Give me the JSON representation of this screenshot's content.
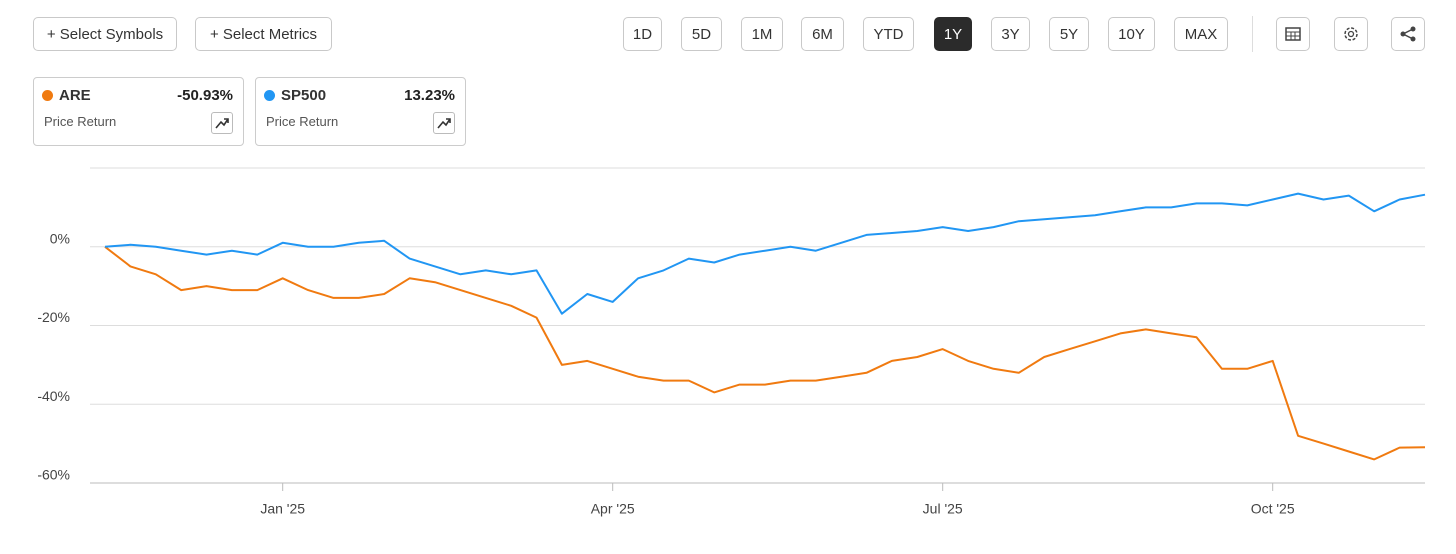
{
  "toolbar": {
    "left_buttons": [
      "+ Select Symbols",
      "+ Select Metrics"
    ],
    "ranges": [
      {
        "label": "1D",
        "selected": false
      },
      {
        "label": "5D",
        "selected": false
      },
      {
        "label": "1M",
        "selected": false
      },
      {
        "label": "6M",
        "selected": false
      },
      {
        "label": "YTD",
        "selected": false
      },
      {
        "label": "1Y",
        "selected": true
      },
      {
        "label": "3Y",
        "selected": false
      },
      {
        "label": "5Y",
        "selected": false
      },
      {
        "label": "10Y",
        "selected": false
      },
      {
        "label": "MAX",
        "selected": false
      }
    ]
  },
  "legend_cards": [
    {
      "change": "-50.93%",
      "metric": "Price Return"
    },
    {
      "change": "13.23%",
      "metric": "Price Return"
    }
  ],
  "chart_data": {
    "type": "line",
    "categories": [
      null,
      null,
      null,
      null,
      null,
      null,
      null,
      "Jan '25",
      null,
      null,
      null,
      null,
      null,
      null,
      null,
      null,
      null,
      null,
      null,
      null,
      "Apr '25",
      null,
      null,
      null,
      null,
      null,
      null,
      null,
      null,
      null,
      null,
      null,
      null,
      "Jul '25",
      null,
      null,
      null,
      null,
      null,
      null,
      null,
      null,
      null,
      null,
      null,
      null,
      "Oct '25",
      null,
      null,
      null,
      null,
      null,
      null
    ],
    "series": [
      {
        "name": "ARE",
        "color": "#f07a10",
        "values": [
          0,
          -5,
          -7,
          -11,
          -10,
          -11,
          -11,
          -8,
          -11,
          -13,
          -13,
          -12,
          -8,
          -9,
          -11,
          -13,
          -15,
          -18,
          -30,
          -29,
          -31,
          -33,
          -34,
          -34,
          -37,
          -35,
          -35,
          -34,
          -34,
          -33,
          -32,
          -29,
          -28,
          -26,
          -29,
          -31,
          -32,
          -28,
          -26,
          -24,
          -22,
          -21,
          -22,
          -23,
          -31,
          -31,
          -29,
          -48,
          -50,
          -52,
          -54,
          -51,
          -50.93
        ]
      },
      {
        "name": "SP500",
        "color": "#2196f3",
        "values": [
          0,
          0.5,
          0,
          -1,
          -2,
          -1,
          -2,
          1,
          0,
          0,
          1,
          1.5,
          -3,
          -5,
          -7,
          -6,
          -7,
          -6,
          -17,
          -12,
          -14,
          -8,
          -6,
          -3,
          -4,
          -2,
          -1,
          0,
          -1,
          1,
          3,
          3.5,
          4,
          5,
          4,
          5,
          6.5,
          7,
          7.5,
          8,
          9,
          10,
          10,
          11,
          11,
          10.5,
          12,
          13.5,
          12,
          13,
          9,
          12,
          13.23
        ]
      }
    ],
    "ylim": [
      -60,
      20
    ],
    "yticks": [
      {
        "value": -60,
        "label": "-60%"
      },
      {
        "value": -40,
        "label": "-40%"
      },
      {
        "value": -20,
        "label": "-20%"
      },
      {
        "value": 0,
        "label": "0%"
      }
    ],
    "grid": true
  }
}
